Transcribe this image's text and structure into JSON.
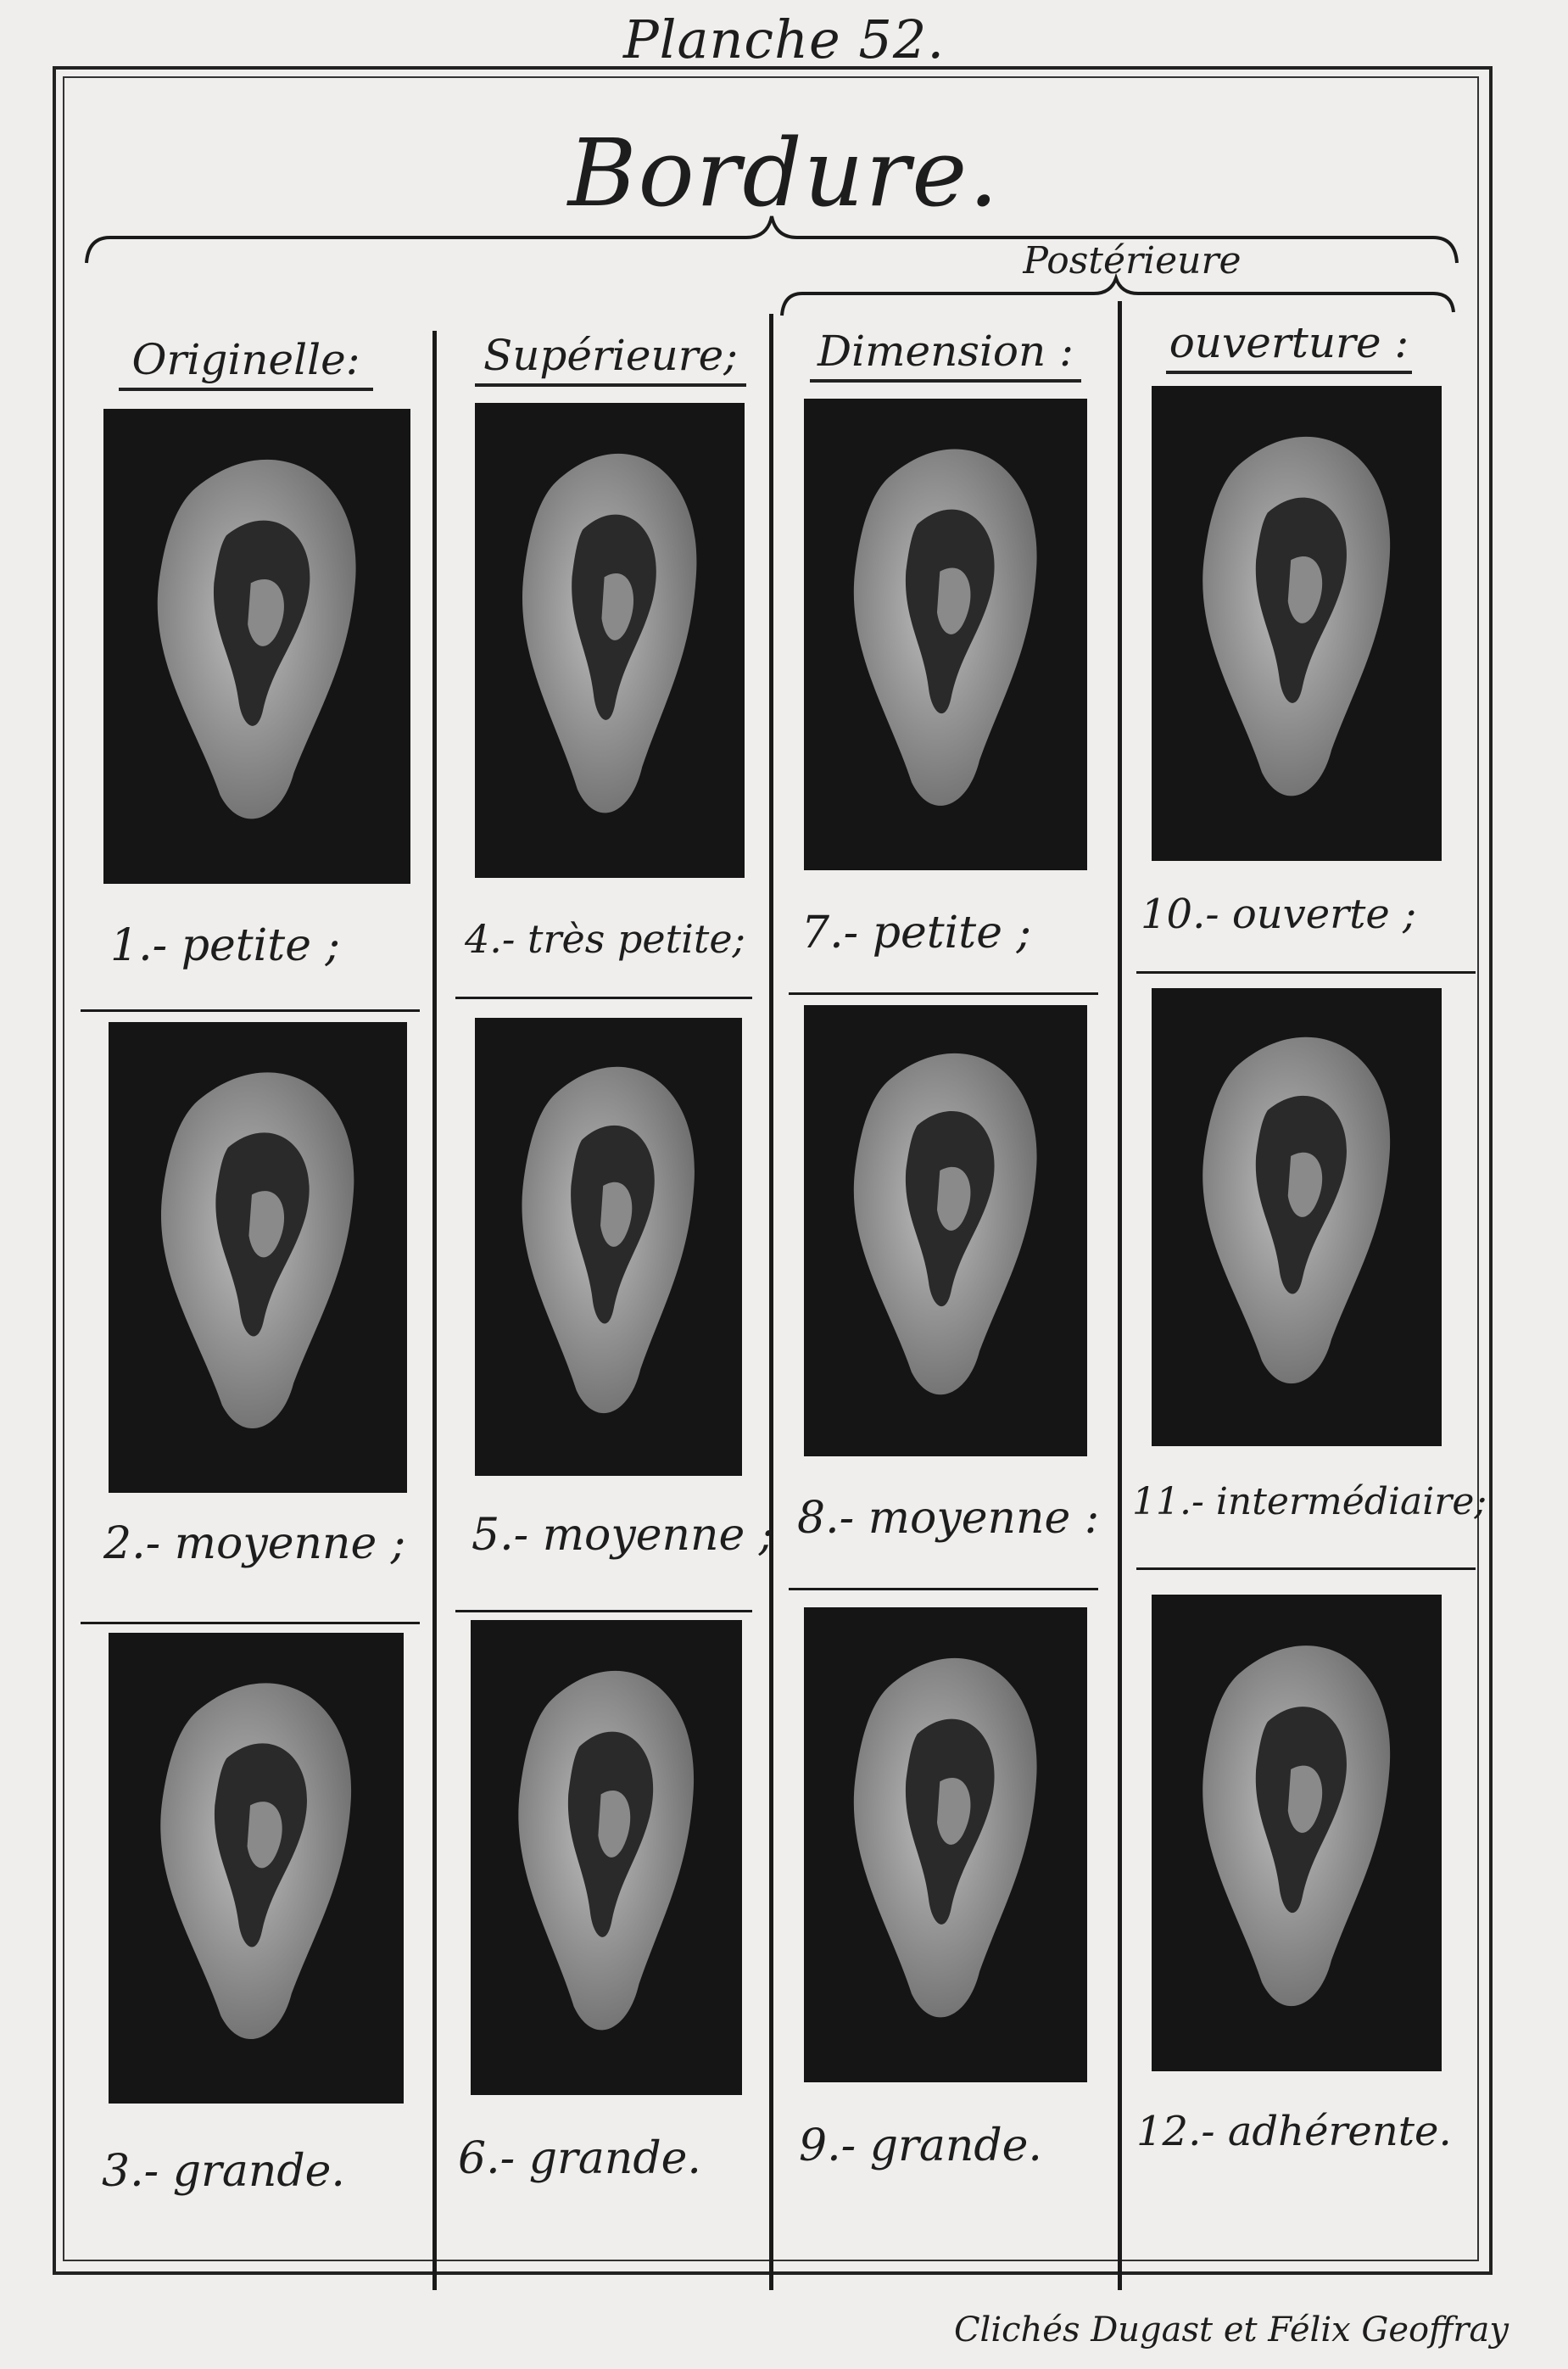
{
  "plate_label": "Planche 52.",
  "title": "Bordure.",
  "group_heading": "Postérieure",
  "columns": [
    {
      "heading": "Originelle:"
    },
    {
      "heading": "Supérieure;"
    },
    {
      "heading": "Dimension :"
    },
    {
      "heading": "ouverture :"
    }
  ],
  "captions": [
    "1.- petite ;",
    "2.- moyenne ;",
    "3.- grande.",
    "4.- très petite;",
    "5.- moyenne ;",
    "6.- grande.",
    "7.- petite ;",
    "8.- moyenne :",
    "9.- grande.",
    "10.- ouverte ;",
    "11.- intermédiaire;",
    "12.- adhérente."
  ],
  "credit": "Clichés Dugast et Félix Geoffray",
  "photo_subject": "ear-photograph"
}
